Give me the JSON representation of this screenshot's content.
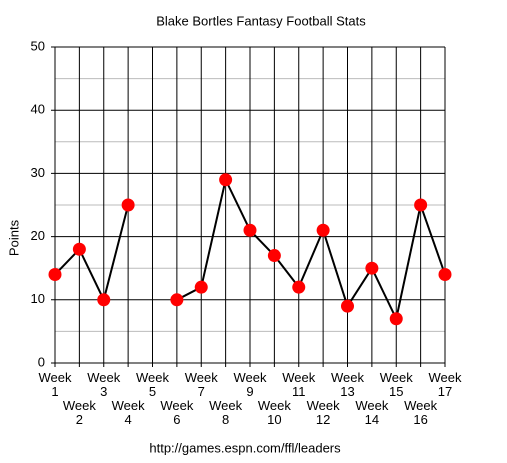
{
  "chart_data": {
    "type": "line",
    "title": "Blake Bortles Fantasy Football Stats",
    "y_label": "Points",
    "source": "http://games.espn.com/ffl/leaders",
    "categories": [
      "Week 1",
      "Week 2",
      "Week 3",
      "Week 4",
      "Week 5",
      "Week 6",
      "Week 7",
      "Week 8",
      "Week 9",
      "Week 10",
      "Week 11",
      "Week 12",
      "Week 13",
      "Week 14",
      "Week 15",
      "Week 16",
      "Week 17"
    ],
    "series": [
      {
        "name": "Points",
        "color": "#ff0000",
        "line_color": "#000000",
        "values": [
          14,
          18,
          10,
          25,
          null,
          10,
          12,
          29,
          21,
          17,
          12,
          21,
          9,
          15,
          7,
          25,
          14
        ]
      }
    ],
    "ylim": [
      0,
      50
    ],
    "yticks": [
      0,
      10,
      20,
      30,
      40,
      50
    ],
    "minor_yticks": [
      5,
      15,
      25,
      35,
      45
    ],
    "grid": true,
    "legend": false
  }
}
